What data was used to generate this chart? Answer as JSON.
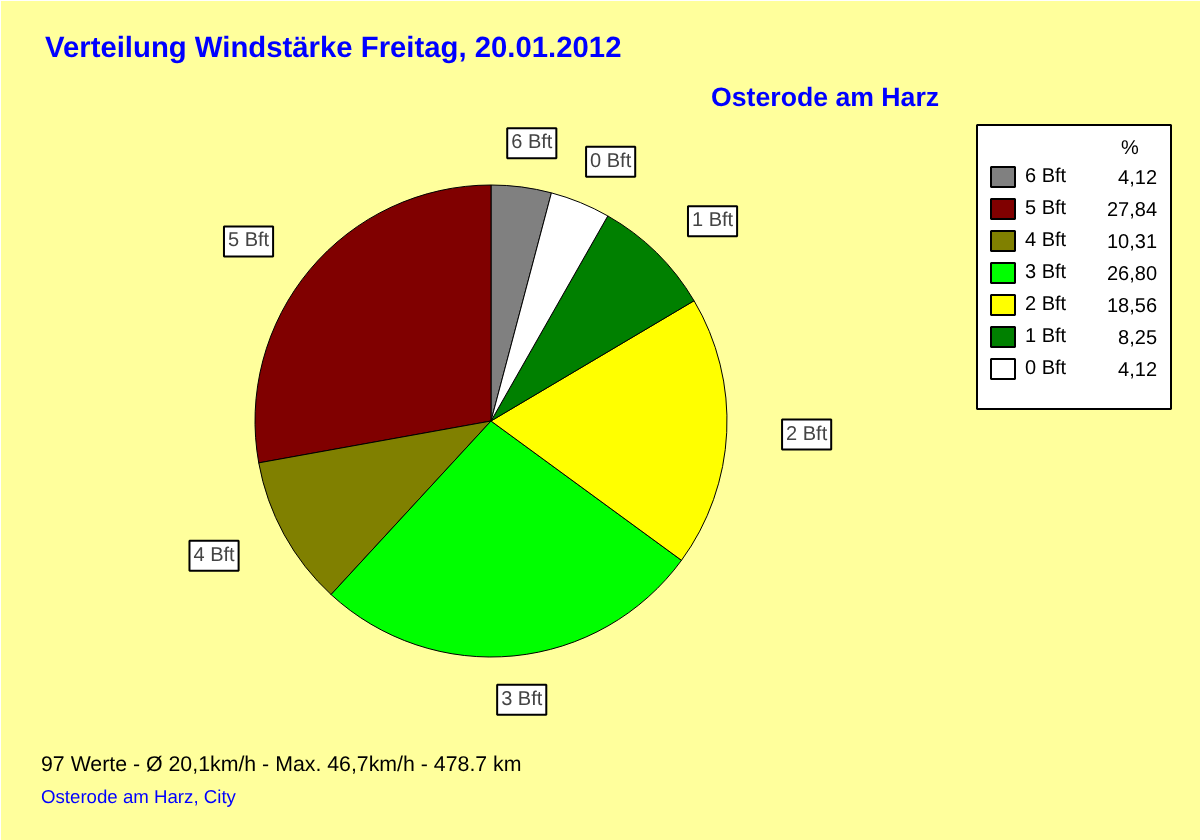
{
  "chart_data": {
    "type": "pie",
    "title": "Verteilung Windstärke  Freitag, 20.01.2012",
    "subtitle": "Osterode am Harz",
    "legend_title": "%",
    "categories": [
      "6 Bft",
      "5 Bft",
      "4 Bft",
      "3 Bft",
      "2 Bft",
      "1 Bft",
      "0 Bft"
    ],
    "values": [
      4.12,
      27.84,
      10.31,
      26.8,
      18.56,
      8.25,
      4.12
    ],
    "value_labels": [
      "4,12",
      "27,84",
      "10,31",
      "26,80",
      "18,56",
      "8,25",
      "4,12"
    ],
    "colors": [
      "#808080",
      "#800000",
      "#808000",
      "#00ff00",
      "#ffff00",
      "#008000",
      "#ffffff"
    ],
    "legend": "right",
    "annotations": [
      "97 Werte   -   Ø 20,1km/h  -  Max. 46,7km/h   -   478.7 km",
      "Osterode am Harz, City"
    ]
  }
}
